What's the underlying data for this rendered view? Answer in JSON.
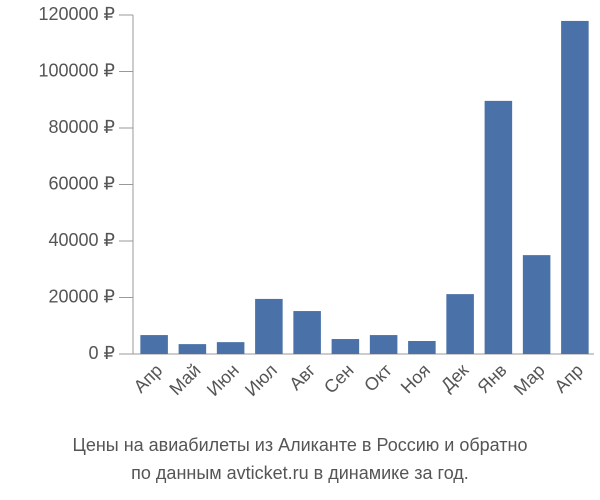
{
  "chart_data": {
    "type": "bar",
    "title": "Цены на авиабилеты из Аликанте в Россию и обратно",
    "subtitle": "по данным avticket.ru в динамике за год.",
    "categories": [
      "Апр",
      "Май",
      "Июн",
      "Июл",
      "Авг",
      "Сен",
      "Окт",
      "Ноя",
      "Дек",
      "Янв",
      "Мар",
      "Апр"
    ],
    "values": [
      6700,
      3500,
      4200,
      19500,
      15200,
      5300,
      6700,
      4600,
      21200,
      89600,
      35000,
      117900
    ],
    "color": "#4a72a8",
    "ylim": [
      0,
      120000
    ],
    "yticks": [
      {
        "value": 0,
        "label": "0 ₽"
      },
      {
        "value": 20000,
        "label": "20000 ₽"
      },
      {
        "value": 40000,
        "label": "40000 ₽"
      },
      {
        "value": 60000,
        "label": "60000 ₽"
      },
      {
        "value": 80000,
        "label": "80000 ₽"
      },
      {
        "value": 100000,
        "label": "100000 ₽"
      },
      {
        "value": 120000,
        "label": "120000 ₽"
      }
    ],
    "grid": false
  }
}
